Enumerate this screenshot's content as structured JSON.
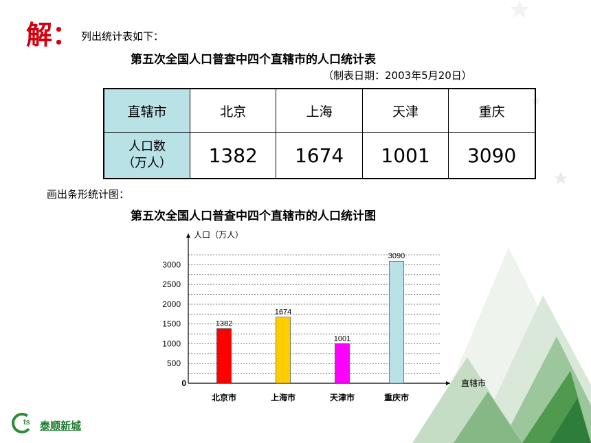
{
  "slide": {
    "heading": "解：",
    "intro": "列出统计表如下：",
    "table_title": "第五次全国人口普查中四个直辖市的人口统计表",
    "table_date": "（制表日期：2003年5月20日）",
    "chart_intro": "画出条形统计图：",
    "chart_title": "第五次全国人口普查中四个直辖市的人口统计图",
    "logo_text": "泰顺新城",
    "logo_mark": "ts"
  },
  "table": {
    "header_label": "直辖市",
    "row_label_line1": "人口数",
    "row_label_line2": "（万人）",
    "cities": [
      "北京",
      "上海",
      "天津",
      "重庆"
    ],
    "values": [
      "1382",
      "1674",
      "1001",
      "3090"
    ]
  },
  "chart_data": {
    "type": "bar",
    "title": "第五次全国人口普查中四个直辖市的人口统计图",
    "ylabel": "人口（万人）",
    "xlabel": "直辖市",
    "categories": [
      "北京市",
      "上海市",
      "天津市",
      "重庆市"
    ],
    "values": [
      1382,
      1674,
      1001,
      3090
    ],
    "colors": [
      "#ff0000",
      "#ffcc00",
      "#ff00ff",
      "#b9e2e6"
    ],
    "yticks": [
      0,
      500,
      1000,
      1500,
      2000,
      2500,
      3000
    ],
    "ylim": [
      0,
      3200
    ],
    "grid": "dashed"
  }
}
